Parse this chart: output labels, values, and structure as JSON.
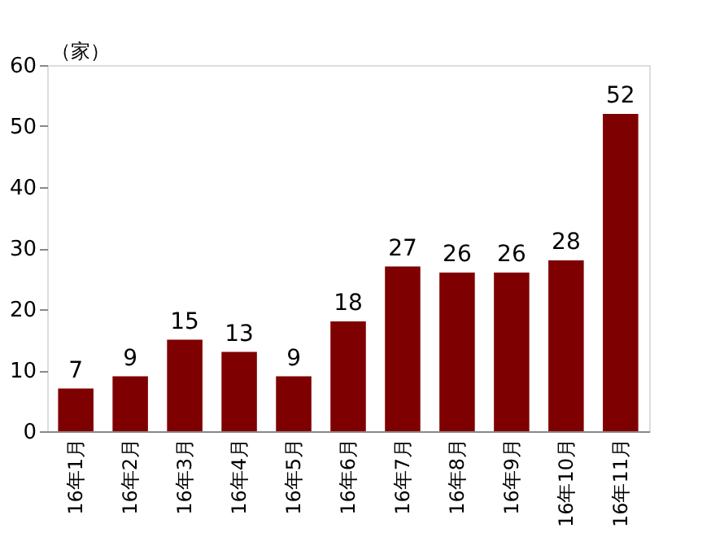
{
  "chart_data": {
    "type": "bar",
    "ylabel": "（家）",
    "categories": [
      "16年1月",
      "16年2月",
      "16年3月",
      "16年4月",
      "16年5月",
      "16年6月",
      "16年7月",
      "16年8月",
      "16年9月",
      "16年10月",
      "16年11月"
    ],
    "values": [
      7,
      9,
      15,
      13,
      9,
      18,
      27,
      26,
      26,
      28,
      52
    ],
    "color": "#7f0000",
    "ylim": [
      0,
      60
    ],
    "yticks": [
      0,
      10,
      20,
      30,
      40,
      50,
      60
    ],
    "grid": false,
    "data_labels": true
  }
}
